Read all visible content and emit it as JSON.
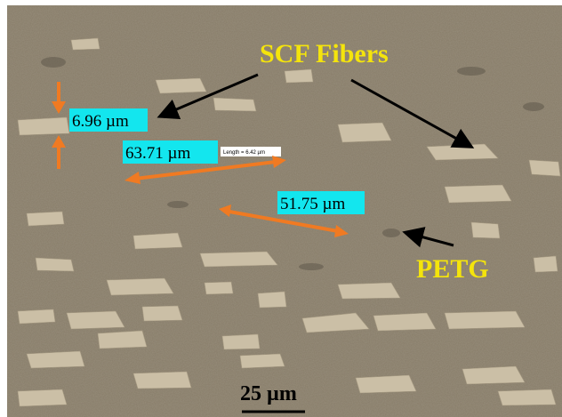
{
  "callouts": {
    "fibers": "SCF Fibers",
    "matrix": "PETG"
  },
  "measurements": [
    {
      "label": "6.96 µm"
    },
    {
      "label": "63.71 µm",
      "tool_label": "Length = 6.42 µm"
    },
    {
      "label": "51.75 µm"
    }
  ],
  "scale_bar": {
    "label": "25 µm"
  }
}
